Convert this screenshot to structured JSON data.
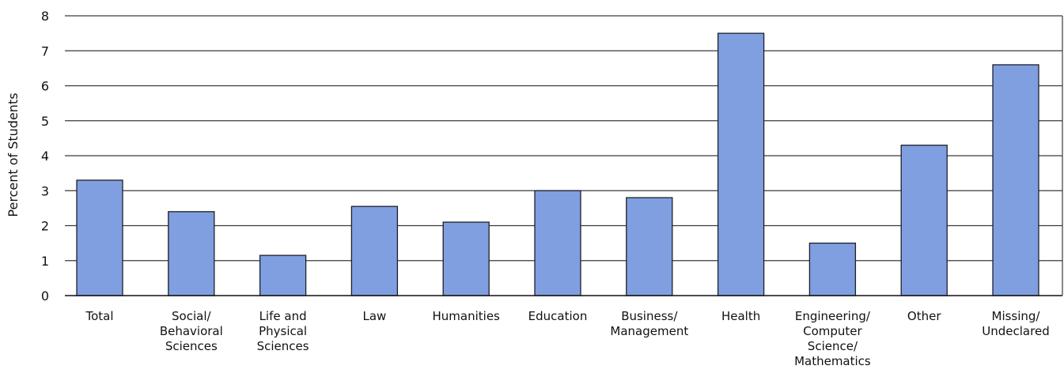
{
  "chart_data": {
    "type": "bar",
    "title": "",
    "xlabel": "",
    "ylabel": "Percent of Students",
    "ylim": [
      0,
      8
    ],
    "yticks": [
      "0",
      "1",
      "2",
      "3",
      "4",
      "5",
      "6",
      "7",
      "8"
    ],
    "grid": true,
    "categories": [
      "Total",
      "Social/\nBehavioral\nSciences",
      "Life and\nPhysical\nSciences",
      "Law",
      "Humanities",
      "Education",
      "Business/\nManagement",
      "Health",
      "Engineering/\nComputer\nScience/\nMathematics",
      "Other",
      "Missing/\nUndeclared"
    ],
    "values": [
      3.3,
      2.4,
      1.15,
      2.55,
      2.1,
      3.0,
      2.8,
      7.5,
      1.5,
      4.3,
      6.6
    ],
    "colors": {
      "bar_fill": "#7f9fe0",
      "bar_stroke": "#1f1f2a",
      "grid": "#3a3a3a",
      "axis": "#111111"
    }
  }
}
